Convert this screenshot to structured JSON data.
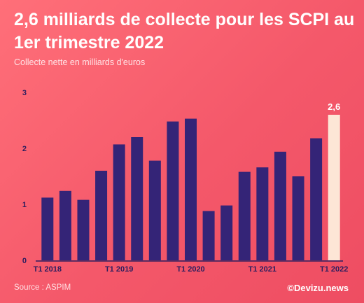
{
  "title": "2,6 milliards de collecte pour les SCPI au 1er trimestre 2022",
  "subtitle": "Collecte nette en milliards d'euros",
  "source": "Source : ASPIM",
  "credit": "©Devizu.news",
  "chart_data": {
    "type": "bar",
    "title": "2,6 milliards de collecte pour les SCPI au 1er trimestre 2022",
    "ylabel": "Collecte nette en milliards d'euros",
    "xlabel": "",
    "categories": [
      "T1 2018",
      "T2 2018",
      "T3 2018",
      "T4 2018",
      "T1 2019",
      "T2 2019",
      "T3 2019",
      "T4 2019",
      "T1 2020",
      "T2 2020",
      "T3 2020",
      "T4 2020",
      "T1 2021",
      "T2 2021",
      "T3 2021",
      "T4 2021",
      "T1 2022"
    ],
    "values": [
      1.12,
      1.24,
      1.08,
      1.6,
      2.07,
      2.2,
      1.78,
      2.48,
      2.53,
      0.88,
      0.98,
      1.58,
      1.66,
      1.94,
      1.5,
      2.18,
      2.6
    ],
    "x_tick_labels": [
      "T1 2018",
      "T1 2019",
      "T1 2020",
      "T1 2021",
      "T1 2022"
    ],
    "y_ticks": [
      0,
      1,
      2,
      3
    ],
    "ylim": [
      0,
      3
    ],
    "highlight_label": "2,6",
    "grid": false,
    "colors": {
      "bar": "#342477",
      "highlight": "#fde6d6",
      "axis": "#2b1d5e"
    }
  }
}
